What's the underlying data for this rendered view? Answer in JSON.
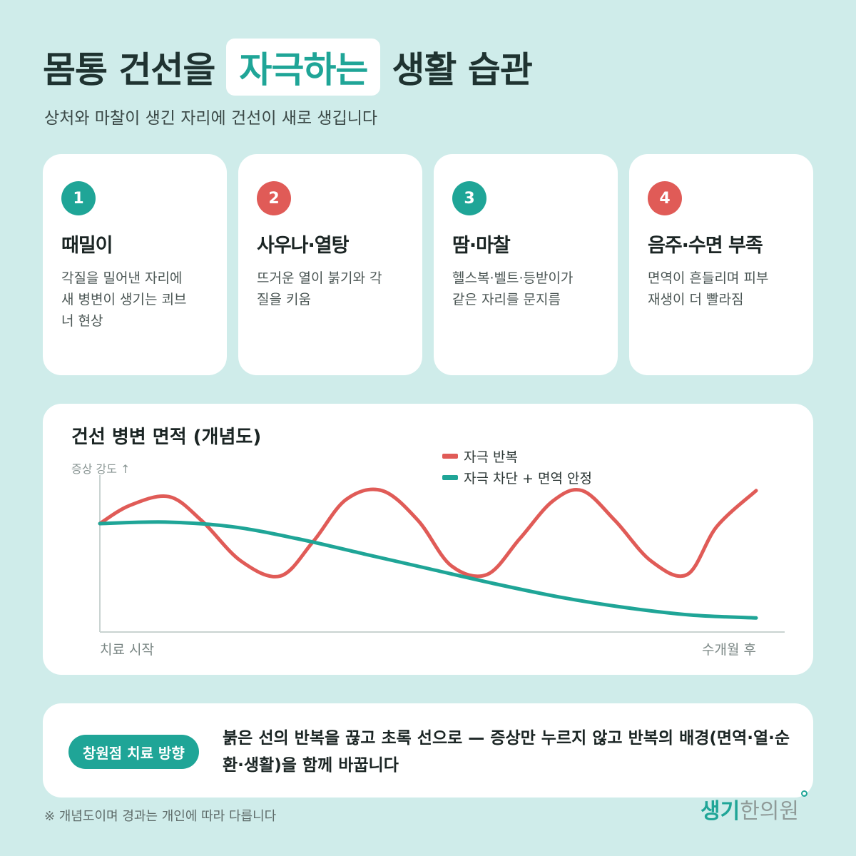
{
  "header": {
    "title_before": "몸통 건선을",
    "title_highlight": "자극하는",
    "title_after": "생활 습관",
    "subtitle": "상처와 마찰이 생긴 자리에 건선이 새로 생깁니다"
  },
  "cards": [
    {
      "number": "1",
      "title": "때밀이",
      "desc": "각질을 밀어낸 자리에\n새 병변이 생기는 쾨브\n너 현상",
      "color": "#1fa597"
    },
    {
      "number": "2",
      "title": "사우나·열탕",
      "desc": "뜨거운 열이 붉기와 각\n질을 키움",
      "color": "#e05b57"
    },
    {
      "number": "3",
      "title": "땀·마찰",
      "desc": "헬스복·벨트·등받이가\n같은 자리를 문지름",
      "color": "#1fa597"
    },
    {
      "number": "4",
      "title": "음주·수면 부족",
      "desc": "면역이 흔들리며 피부\n재생이 더 빨라짐",
      "color": "#e05b57"
    }
  ],
  "chart_data": {
    "type": "line",
    "title": "건선 병변 면적 (개념도)",
    "ylabel": "증상 강도 ↑",
    "x_start_label": "치료 시작",
    "x_end_label": "수개월 후",
    "xlim": [
      0,
      1
    ],
    "ylim": [
      0,
      1
    ],
    "series": [
      {
        "name": "자극 반복",
        "color": "#e05b57",
        "x": [
          0,
          0.045,
          0.105,
          0.155,
          0.215,
          0.275,
          0.325,
          0.375,
          0.43,
          0.485,
          0.535,
          0.59,
          0.64,
          0.69,
          0.735,
          0.785,
          0.84,
          0.895,
          0.94,
          1.0
        ],
        "y": [
          0.7,
          0.82,
          0.88,
          0.72,
          0.45,
          0.35,
          0.58,
          0.86,
          0.92,
          0.72,
          0.42,
          0.36,
          0.6,
          0.85,
          0.92,
          0.72,
          0.45,
          0.36,
          0.68,
          0.92
        ]
      },
      {
        "name": "자극 차단 + 면역 안정",
        "color": "#1fa597",
        "x": [
          0,
          0.1,
          0.2,
          0.3,
          0.4,
          0.5,
          0.6,
          0.7,
          0.8,
          0.9,
          1.0
        ],
        "y": [
          0.7,
          0.71,
          0.68,
          0.6,
          0.5,
          0.4,
          0.3,
          0.21,
          0.14,
          0.09,
          0.07
        ]
      }
    ],
    "grid": false,
    "legend": "top-center"
  },
  "note": {
    "pill_label": "창원점 치료 방향",
    "text": "붉은 선의 반복을 끊고 초록 선으로 — 증상만 누르지 않고 반복의 배경(면역·열·순환·생활)을 함께 바꿉니다"
  },
  "footnote": "※ 개념도이며 경과는 개인에 따라 다릅니다",
  "logo": {
    "part1": "생기",
    "part2": "한의원"
  }
}
